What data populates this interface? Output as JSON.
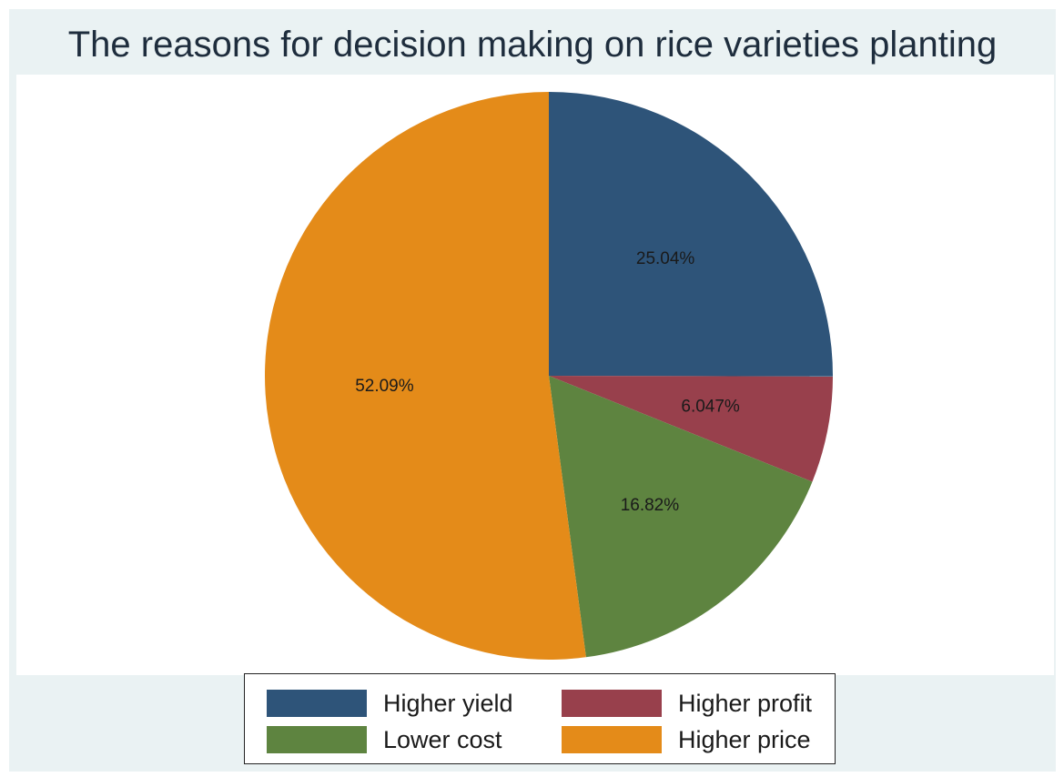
{
  "chart_data": {
    "type": "pie",
    "title": "The reasons for decision making on rice varieties planting",
    "slices": [
      {
        "name": "Higher yield",
        "value": 25.04,
        "label": "25.04%",
        "color": "#2e5479"
      },
      {
        "name": "Higher profit",
        "value": 6.047,
        "label": "6.047%",
        "color": "#98404c"
      },
      {
        "name": "Lower cost",
        "value": 16.82,
        "label": "16.82%",
        "color": "#5e8440"
      },
      {
        "name": "Higher price",
        "value": 52.09,
        "label": "52.09%",
        "color": "#e48b19"
      }
    ],
    "start_angle": "12 o'clock",
    "direction": "clockwise",
    "legend": {
      "position": "bottom",
      "columns": 2,
      "entries": [
        "Higher yield",
        "Higher profit",
        "Lower cost",
        "Higher price"
      ]
    }
  }
}
